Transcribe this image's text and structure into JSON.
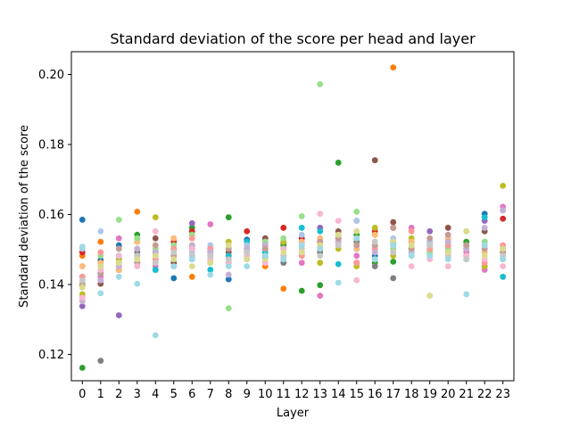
{
  "chart_data": {
    "type": "scatter",
    "title": "Standard deviation of the score per head and layer",
    "xlabel": "Layer",
    "ylabel": "Standard deviation of the score",
    "x_ticks": [
      "0",
      "1",
      "2",
      "3",
      "4",
      "5",
      "6",
      "7",
      "8",
      "9",
      "10",
      "11",
      "12",
      "13",
      "14",
      "15",
      "16",
      "17",
      "18",
      "19",
      "20",
      "21",
      "22",
      "23"
    ],
    "y_ticks": [
      "0.12",
      "0.14",
      "0.16",
      "0.18",
      "0.20"
    ],
    "y_tick_values": [
      0.12,
      0.14,
      0.16,
      0.18,
      0.2
    ],
    "xlim": [
      -0.6,
      23.6
    ],
    "ylim": [
      0.1125,
      0.2065
    ],
    "grid": false,
    "legend": "none",
    "colors": [
      "#1f77b4",
      "#ff7f0e",
      "#2ca02c",
      "#d62728",
      "#9467bd",
      "#8c564b",
      "#e377c2",
      "#7f7f7f",
      "#bcbd22",
      "#17becf",
      "#aec7e8",
      "#ffbb78",
      "#98df8a",
      "#ff9896",
      "#c5b0d5",
      "#c49c94",
      "#f7b6d2",
      "#c7c7c7",
      "#dbdb8d",
      "#9edae5"
    ],
    "series": [
      {
        "color": "#1f77b4",
        "values": [
          0.1585,
          0.147,
          0.1512,
          0.1462,
          0.1442,
          0.1418,
          0.1482,
          0.1492,
          0.1415,
          0.1528,
          0.1478,
          0.1518,
          0.1532,
          0.1522,
          0.1532,
          0.1502,
          0.1482,
          0.1518,
          0.1502,
          0.1522,
          0.1522,
          0.1512,
          0.1602,
          0.1492
        ]
      },
      {
        "color": "#ff7f0e",
        "values": [
          0.1482,
          0.1522,
          0.1442,
          0.1608,
          0.1472,
          0.1532,
          0.1422,
          0.1492,
          0.1472,
          0.1512,
          0.1452,
          0.1388,
          0.1482,
          0.1512,
          0.1522,
          0.1532,
          0.1542,
          0.202,
          0.1522,
          0.1492,
          0.1482,
          0.1502,
          0.1452,
          0.1492
        ]
      },
      {
        "color": "#2ca02c",
        "values": [
          0.1162,
          0.1432,
          0.1462,
          0.1542,
          0.1482,
          0.1502,
          0.1562,
          0.1482,
          0.1592,
          0.1482,
          0.1512,
          0.1512,
          0.1382,
          0.1398,
          0.1748,
          0.1542,
          0.1462,
          0.1465,
          0.1502,
          0.1482,
          0.1512,
          0.1522,
          0.1492,
          0.1502
        ]
      },
      {
        "color": "#d62728",
        "values": [
          0.1492,
          0.1462,
          0.1442,
          0.1482,
          0.1492,
          0.1522,
          0.1552,
          0.1472,
          0.1482,
          0.1552,
          0.1512,
          0.1562,
          0.1532,
          0.1502,
          0.1542,
          0.1462,
          0.1552,
          0.1562,
          0.1492,
          0.1512,
          0.1492,
          0.1502,
          0.1512,
          0.1588
        ]
      },
      {
        "color": "#9467bd",
        "values": [
          0.1338,
          0.1412,
          0.1312,
          0.1522,
          0.1492,
          0.1482,
          0.1575,
          0.1502,
          0.1462,
          0.1502,
          0.1522,
          0.1482,
          0.1492,
          0.1562,
          0.1532,
          0.1582,
          0.1502,
          0.1522,
          0.1552,
          0.1552,
          0.1502,
          0.1482,
          0.1582,
          0.1612
        ]
      },
      {
        "color": "#8c564b",
        "values": [
          0.1398,
          0.1402,
          0.1442,
          0.1482,
          0.1532,
          0.1462,
          0.1512,
          0.1502,
          0.1492,
          0.1492,
          0.1532,
          0.1472,
          0.1512,
          0.1492,
          0.1552,
          0.1512,
          0.1755,
          0.1578,
          0.1492,
          0.1522,
          0.1562,
          0.1512,
          0.1552,
          0.1502
        ]
      },
      {
        "color": "#e377c2",
        "values": [
          0.1452,
          0.1422,
          0.1532,
          0.1502,
          0.1452,
          0.1492,
          0.1482,
          0.1572,
          0.1482,
          0.1502,
          0.1482,
          0.1522,
          0.1462,
          0.1368,
          0.1512,
          0.1482,
          0.1492,
          0.1502,
          0.1562,
          0.1502,
          0.1482,
          0.1492,
          0.1442,
          0.1622
        ]
      },
      {
        "color": "#7f7f7f",
        "values": [
          0.1362,
          0.1182,
          0.1472,
          0.1492,
          0.1462,
          0.1452,
          0.1502,
          0.1482,
          0.1502,
          0.1472,
          0.1492,
          0.1462,
          0.1522,
          0.1492,
          0.1532,
          0.1522,
          0.1452,
          0.1418,
          0.1522,
          0.1492,
          0.1532,
          0.1482,
          0.1522,
          0.1472
        ]
      },
      {
        "color": "#bcbd22",
        "values": [
          0.1372,
          0.1442,
          0.1472,
          0.1482,
          0.1592,
          0.1482,
          0.1512,
          0.1462,
          0.1522,
          0.1482,
          0.1502,
          0.1522,
          0.1482,
          0.1462,
          0.1502,
          0.1452,
          0.1562,
          0.1482,
          0.1532,
          0.1492,
          0.1522,
          0.1552,
          0.1452,
          0.1682
        ]
      },
      {
        "color": "#17becf",
        "values": [
          0.1422,
          0.1432,
          0.1482,
          0.1462,
          0.1442,
          0.1502,
          0.1472,
          0.1442,
          0.1482,
          0.1522,
          0.1492,
          0.1502,
          0.1562,
          0.1552,
          0.1458,
          0.1502,
          0.1472,
          0.1522,
          0.1482,
          0.1482,
          0.1492,
          0.1472,
          0.1592,
          0.1422
        ]
      },
      {
        "color": "#aec7e8",
        "values": [
          0.1502,
          0.1552,
          0.1502,
          0.1532,
          0.1552,
          0.1472,
          0.1492,
          0.1512,
          0.1462,
          0.1512,
          0.1502,
          0.1482,
          0.1542,
          0.1532,
          0.1542,
          0.1582,
          0.1512,
          0.1532,
          0.1492,
          0.1522,
          0.1502,
          0.1512,
          0.1502,
          0.1482
        ]
      },
      {
        "color": "#ffbb78",
        "values": [
          0.1452,
          0.1462,
          0.1442,
          0.1522,
          0.1502,
          0.1532,
          0.1502,
          0.1472,
          0.1512,
          0.1492,
          0.1522,
          0.1502,
          0.1522,
          0.1532,
          0.1522,
          0.1502,
          0.1542,
          0.1502,
          0.1522,
          0.1512,
          0.1532,
          0.1502,
          0.1492,
          0.1502
        ]
      },
      {
        "color": "#98df8a",
        "values": [
          0.1422,
          0.1482,
          0.1585,
          0.1532,
          0.1502,
          0.1512,
          0.1542,
          0.1502,
          0.1332,
          0.1502,
          0.1522,
          0.1532,
          0.1595,
          0.1972,
          0.1532,
          0.1608,
          0.1522,
          0.1502,
          0.1512,
          0.1492,
          0.1502,
          0.1512,
          0.1522,
          0.1502
        ]
      },
      {
        "color": "#ff9896",
        "values": [
          0.1422,
          0.1492,
          0.1452,
          0.1482,
          0.1472,
          0.1502,
          0.1532,
          0.1502,
          0.1462,
          0.1492,
          0.1502,
          0.1472,
          0.1482,
          0.1522,
          0.1512,
          0.1462,
          0.1502,
          0.1492,
          0.1552,
          0.1502,
          0.1512,
          0.1482,
          0.1462,
          0.1512
        ]
      },
      {
        "color": "#c5b0d5",
        "values": [
          0.1352,
          0.1412,
          0.1452,
          0.1502,
          0.1492,
          0.1472,
          0.1512,
          0.1492,
          0.1428,
          0.1502,
          0.1512,
          0.1502,
          0.1492,
          0.1512,
          0.1522,
          0.1512,
          0.1492,
          0.1512,
          0.1502,
          0.1512,
          0.1522,
          0.1502,
          0.1562,
          0.1612
        ]
      },
      {
        "color": "#c49c94",
        "values": [
          0.1402,
          0.1432,
          0.1502,
          0.1462,
          0.1512,
          0.1482,
          0.1502,
          0.1482,
          0.1502,
          0.1482,
          0.1502,
          0.1482,
          0.1512,
          0.1522,
          0.1532,
          0.1512,
          0.1512,
          0.1562,
          0.1502,
          0.1532,
          0.1542,
          0.1512,
          0.1502,
          0.1492
        ]
      },
      {
        "color": "#f7b6d2",
        "values": [
          0.1362,
          0.1442,
          0.1482,
          0.1452,
          0.1552,
          0.1472,
          0.1502,
          0.1472,
          0.1462,
          0.1482,
          0.1462,
          0.1502,
          0.1512,
          0.1602,
          0.1582,
          0.1412,
          0.1522,
          0.1512,
          0.1452,
          0.1472,
          0.1452,
          0.1482,
          0.1472,
          0.1452
        ]
      },
      {
        "color": "#c7c7c7",
        "values": [
          0.1412,
          0.1452,
          0.1462,
          0.1482,
          0.1462,
          0.1492,
          0.1482,
          0.1482,
          0.1472,
          0.1492,
          0.1472,
          0.1482,
          0.1502,
          0.1482,
          0.1512,
          0.1532,
          0.1522,
          0.1492,
          0.1482,
          0.1512,
          0.1482,
          0.1472,
          0.1512,
          0.1482
        ]
      },
      {
        "color": "#dbdb8d",
        "values": [
          0.1392,
          0.1452,
          0.1462,
          0.1472,
          0.1482,
          0.1472,
          0.1452,
          0.1462,
          0.1512,
          0.1472,
          0.1472,
          0.1492,
          0.1492,
          0.1512,
          0.1542,
          0.1552,
          0.1472,
          0.1522,
          0.1512,
          0.1368,
          0.1492,
          0.1552,
          0.1482,
          0.1502
        ]
      },
      {
        "color": "#9edae5",
        "values": [
          0.1508,
          0.1375,
          0.1422,
          0.1402,
          0.1255,
          0.1452,
          0.1472,
          0.1428,
          0.1452,
          0.1452,
          0.1482,
          0.1472,
          0.1512,
          0.1502,
          0.1405,
          0.1532,
          0.1472,
          0.1512,
          0.1482,
          0.1482,
          0.1472,
          0.1372,
          0.1512,
          0.1472
        ]
      }
    ]
  }
}
